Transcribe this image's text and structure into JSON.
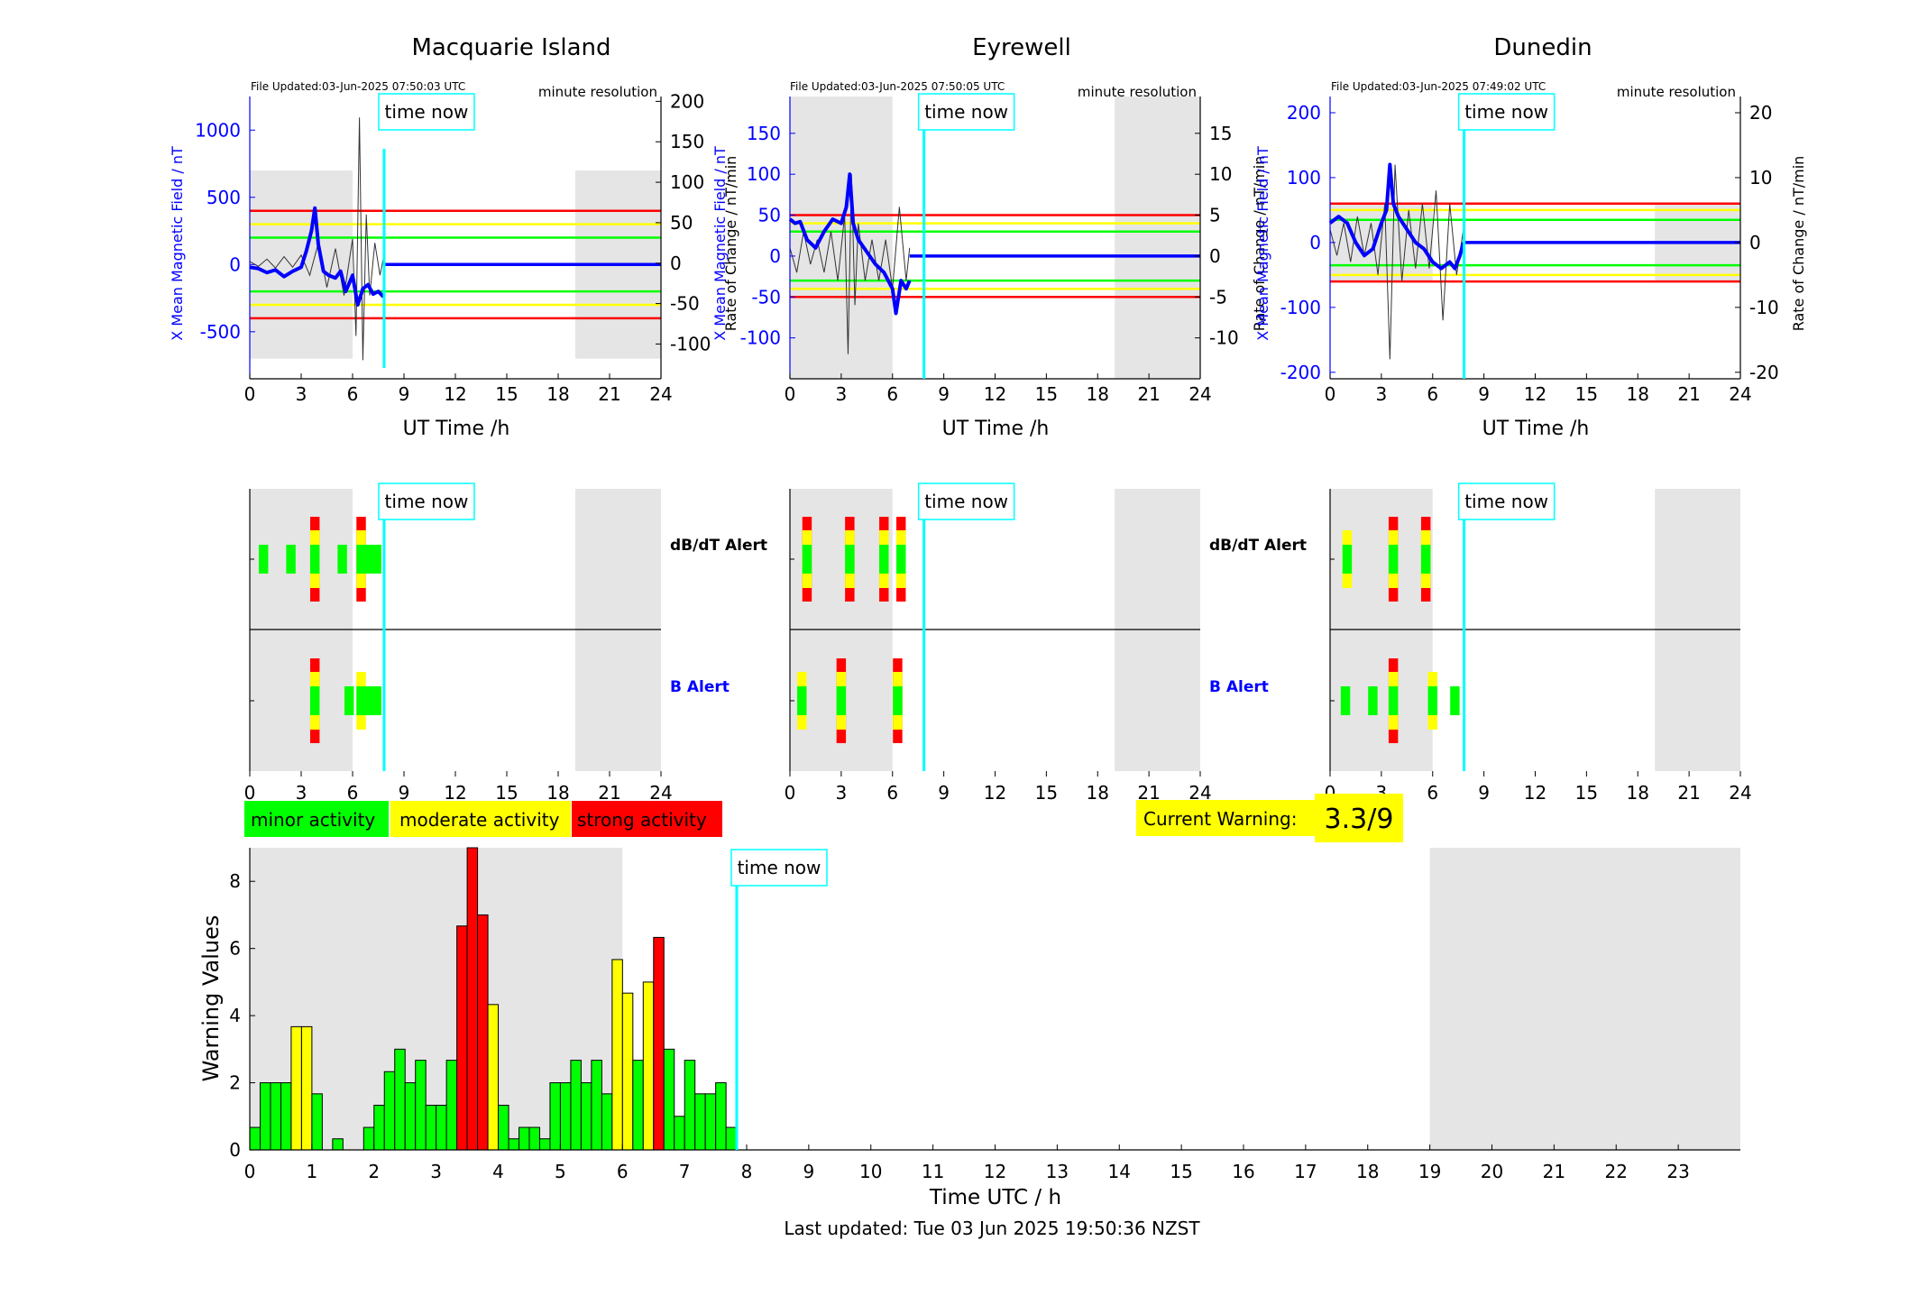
{
  "footer": {
    "last_updated": "Last updated: Tue 03 Jun 2025 19:50:36 NZST"
  },
  "common": {
    "time_now_label": "time now",
    "time_now_hour": 7.84,
    "top_xlabel": "UT Time /h",
    "resolution_label": "minute resolution",
    "x_ticks": [
      0,
      3,
      6,
      9,
      12,
      15,
      18,
      21,
      24
    ],
    "xlim": [
      0,
      24
    ],
    "night_shading": [
      [
        0,
        6
      ],
      [
        19,
        24
      ]
    ],
    "alert_row_labels": {
      "dbdt": "dB/dT Alert",
      "b": "B Alert"
    }
  },
  "colors": {
    "minor": "#00ff00",
    "moderate": "#ffff00",
    "strong": "#ff0000",
    "field_line": "#0000ff",
    "rate_line": "#000000",
    "time_now": "#00ffff",
    "night": "#e5e5e5"
  },
  "legend": {
    "minor": "minor activity",
    "moderate": "moderate activity",
    "strong": "strong activity"
  },
  "current_warning": {
    "label": "Current Warning:",
    "value": "3.3/9"
  },
  "chart_data": [
    {
      "type": "line",
      "title": "Macquarie Island",
      "file_updated": "File Updated:03-Jun-2025 07:50:03 UTC",
      "ylabel_left": "X Mean Magnetic Field / nT",
      "ylabel_right": "Rate of Change / nT/min",
      "ylim_left": [
        -850,
        1250
      ],
      "ylim_right": [
        -143,
        206
      ],
      "yticks_left": [
        -500,
        0,
        500,
        1000
      ],
      "yticks_right": [
        -100,
        -50,
        0,
        50,
        100,
        150,
        200
      ],
      "thresholds": [
        {
          "color": "red",
          "value": 400
        },
        {
          "color": "yellow",
          "value": 300
        },
        {
          "color": "green",
          "value": 200
        }
      ],
      "shade_range": [
        -700,
        700
      ],
      "field_series": {
        "name": "X Mean Magnetic Field",
        "x": [
          0,
          0.5,
          1,
          1.5,
          2,
          2.5,
          3,
          3.3,
          3.6,
          3.8,
          4,
          4.3,
          4.6,
          5,
          5.3,
          5.6,
          6,
          6.3,
          6.6,
          6.9,
          7.2,
          7.5,
          7.8
        ],
        "y": [
          -20,
          -30,
          -60,
          -40,
          -90,
          -50,
          -20,
          100,
          250,
          420,
          150,
          -50,
          -80,
          -100,
          -50,
          -200,
          -80,
          -300,
          -180,
          -150,
          -220,
          -200,
          -240
        ]
      },
      "rate_series": {
        "name": "Rate of Change",
        "x": [
          0,
          0.5,
          1,
          1.5,
          2,
          2.5,
          3,
          3.5,
          4,
          4.5,
          5,
          5.5,
          6,
          6.2,
          6.4,
          6.6,
          6.8,
          7,
          7.3,
          7.6,
          7.8
        ],
        "y": [
          2,
          -4,
          5,
          -6,
          8,
          -5,
          10,
          -15,
          25,
          -30,
          18,
          -40,
          30,
          -90,
          180,
          -120,
          60,
          -40,
          25,
          -15,
          6
        ]
      },
      "dbdt_alert": [
        {
          "t": 0.8,
          "level": 1
        },
        {
          "t": 2.4,
          "level": 1
        },
        {
          "t": 3.8,
          "level": 3
        },
        {
          "t": 6.5,
          "level": 3
        },
        {
          "t": 5.4,
          "level": 1
        },
        {
          "t": 7.0,
          "level": 1
        },
        {
          "t": 7.4,
          "level": 1
        }
      ],
      "b_alert": [
        {
          "t": 3.8,
          "level": 3
        },
        {
          "t": 6.5,
          "level": 2
        },
        {
          "t": 5.8,
          "level": 1
        },
        {
          "t": 7.0,
          "level": 1
        },
        {
          "t": 7.4,
          "level": 1
        }
      ]
    },
    {
      "type": "line",
      "title": "Eyrewell",
      "file_updated": "File Updated:03-Jun-2025 07:50:05 UTC",
      "ylabel_left": "X Mean Magnetic Field / nT",
      "ylabel_right": "Rate of Change / nT/min",
      "ylim_left": [
        -150,
        195
      ],
      "ylim_right": [
        -15,
        19.5
      ],
      "yticks_left": [
        -100,
        -50,
        0,
        50,
        100,
        150
      ],
      "yticks_right": [
        -10,
        -5,
        0,
        5,
        10,
        15
      ],
      "thresholds": [
        {
          "color": "red",
          "value": 50
        },
        {
          "color": "yellow",
          "value": 40
        },
        {
          "color": "green",
          "value": 30
        }
      ],
      "shade_range": null,
      "field_series": {
        "name": "X Mean Magnetic Field",
        "x": [
          0,
          0.3,
          0.6,
          1,
          1.5,
          2,
          2.5,
          3,
          3.3,
          3.5,
          3.7,
          4,
          4.5,
          5,
          5.5,
          6,
          6.2,
          6.5,
          6.8,
          7
        ],
        "y": [
          45,
          40,
          42,
          20,
          10,
          30,
          45,
          40,
          60,
          100,
          40,
          20,
          5,
          -10,
          -20,
          -40,
          -70,
          -30,
          -40,
          -30
        ]
      },
      "rate_series": {
        "name": "Rate of Change",
        "x": [
          0,
          0.4,
          0.8,
          1.2,
          1.6,
          2,
          2.4,
          2.8,
          3.2,
          3.4,
          3.6,
          3.8,
          4,
          4.4,
          4.8,
          5.2,
          5.6,
          6,
          6.4,
          6.8,
          7
        ],
        "y": [
          1,
          -2,
          3,
          -1,
          2,
          -2,
          3,
          -3,
          5,
          -12,
          10,
          -6,
          4,
          -3,
          2,
          -3,
          2,
          -4,
          6,
          -3,
          1
        ]
      },
      "dbdt_alert": [
        {
          "t": 1.0,
          "level": 3
        },
        {
          "t": 3.5,
          "level": 3
        },
        {
          "t": 5.5,
          "level": 3
        },
        {
          "t": 6.5,
          "level": 3
        }
      ],
      "b_alert": [
        {
          "t": 0.7,
          "level": 2
        },
        {
          "t": 3.0,
          "level": 3
        },
        {
          "t": 6.3,
          "level": 3
        }
      ]
    },
    {
      "type": "line",
      "title": "Dunedin",
      "file_updated": "File Updated:03-Jun-2025 07:49:02 UTC",
      "ylabel_left": "X Mean Magnetic Field / nT",
      "ylabel_right": "Rate of Change / nT/min",
      "ylim_left": [
        -210,
        225
      ],
      "ylim_right": [
        -21,
        22.5
      ],
      "yticks_left": [
        -200,
        -100,
        0,
        100,
        200
      ],
      "yticks_right": [
        -20,
        -10,
        0,
        10,
        20
      ],
      "thresholds": [
        {
          "color": "red",
          "value": 60
        },
        {
          "color": "yellow",
          "value": 50
        },
        {
          "color": "green",
          "value": 35
        }
      ],
      "shade_range": [
        -60,
        60
      ],
      "field_series": {
        "name": "X Mean Magnetic Field",
        "x": [
          0,
          0.5,
          1,
          1.5,
          2,
          2.5,
          3,
          3.3,
          3.5,
          3.7,
          4,
          4.5,
          5,
          5.5,
          6,
          6.5,
          7,
          7.3,
          7.6,
          7.8
        ],
        "y": [
          30,
          40,
          30,
          0,
          -20,
          -10,
          30,
          50,
          120,
          60,
          40,
          20,
          0,
          -10,
          -30,
          -40,
          -30,
          -40,
          -20,
          0
        ]
      },
      "rate_series": {
        "name": "Rate of Change",
        "x": [
          0,
          0.4,
          0.8,
          1.2,
          1.6,
          2,
          2.4,
          2.8,
          3.2,
          3.5,
          3.8,
          4.2,
          4.6,
          5,
          5.4,
          5.8,
          6.2,
          6.6,
          7,
          7.4,
          7.8
        ],
        "y": [
          2,
          -2,
          3,
          -3,
          4,
          -2,
          3,
          -5,
          6,
          -18,
          12,
          -6,
          5,
          -4,
          6,
          -4,
          8,
          -12,
          6,
          -5,
          2
        ]
      },
      "dbdt_alert": [
        {
          "t": 3.7,
          "level": 3
        },
        {
          "t": 5.6,
          "level": 3
        },
        {
          "t": 1.0,
          "level": 2
        }
      ],
      "b_alert": [
        {
          "t": 3.7,
          "level": 3
        },
        {
          "t": 6.0,
          "level": 2
        },
        {
          "t": 0.9,
          "level": 1
        },
        {
          "t": 2.5,
          "level": 1
        },
        {
          "t": 7.3,
          "level": 1
        }
      ]
    },
    {
      "type": "bar",
      "xlabel": "Time UTC / h",
      "ylabel": "Warning Values",
      "xlim": [
        0,
        24
      ],
      "ylim": [
        0,
        9
      ],
      "x_ticks": [
        0,
        1,
        2,
        3,
        4,
        5,
        6,
        7,
        8,
        9,
        10,
        11,
        12,
        13,
        14,
        15,
        16,
        17,
        18,
        19,
        20,
        21,
        22,
        23
      ],
      "y_ticks": [
        0,
        2,
        4,
        6,
        8
      ],
      "night_shading": [
        [
          0,
          6
        ],
        [
          19,
          24
        ]
      ],
      "bar_width_h": 0.1667,
      "values": [
        0.67,
        2,
        2,
        2,
        3.67,
        3.67,
        1.67,
        0,
        0.33,
        0,
        0,
        0.67,
        1.33,
        2.33,
        3,
        2,
        2.67,
        1.33,
        1.33,
        2.67,
        6.67,
        9,
        7,
        4.33,
        1.33,
        0.33,
        0.67,
        0.67,
        0.33,
        2,
        2,
        2.67,
        2,
        2.67,
        1.67,
        5.67,
        4.67,
        2.67,
        5,
        6.33,
        3,
        1,
        2.67,
        1.67,
        1.67,
        2,
        0.67
      ],
      "levels": [
        1,
        1,
        1,
        1,
        2,
        2,
        1,
        0,
        1,
        0,
        0,
        1,
        1,
        1,
        1,
        1,
        1,
        1,
        1,
        1,
        3,
        3,
        3,
        2,
        1,
        1,
        1,
        1,
        1,
        1,
        1,
        1,
        1,
        1,
        1,
        2,
        2,
        1,
        2,
        3,
        1,
        1,
        1,
        1,
        1,
        1,
        1
      ]
    }
  ]
}
